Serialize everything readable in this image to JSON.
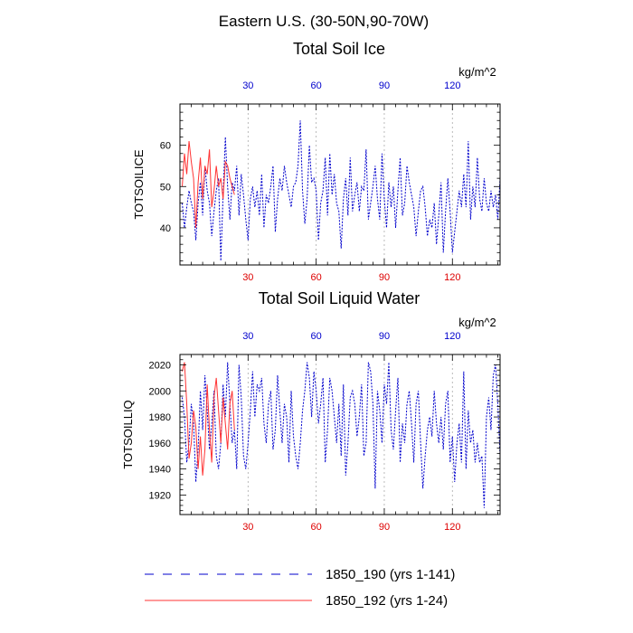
{
  "figure": {
    "region_title": "Eastern U.S. (30-50N,90-70W)"
  },
  "colors": {
    "series_a": "#0000cc",
    "series_b": "#ff3333",
    "bottom_ticks": "#dd0000",
    "top_ticks": "#0000cc",
    "grid": "#aaaaaa"
  },
  "legend": [
    {
      "label": "1850_190 (yrs 1-141)",
      "style": "dashed",
      "color": "#0000cc"
    },
    {
      "label": "1850_192 (yrs 1-24)",
      "style": "solid",
      "color": "#ff3333"
    }
  ],
  "chart_data": [
    {
      "type": "line",
      "title": "Total Soil Ice",
      "units": "kg/m^2",
      "ylabel": "TOTSOILICE",
      "xlim": [
        0,
        141
      ],
      "ylim": [
        31,
        70
      ],
      "yticks": [
        40,
        50,
        60
      ],
      "xticks": [
        30,
        60,
        90,
        120
      ],
      "series": [
        {
          "name": "1850_190 (yrs 1-141)",
          "style": "dashed",
          "color": "#0000cc",
          "values": [
            46,
            40,
            45,
            49,
            46,
            44,
            37,
            46,
            51,
            43,
            55,
            49,
            46,
            38,
            44,
            49,
            52,
            32,
            48,
            62,
            50,
            42,
            51,
            49,
            55,
            43,
            53,
            48,
            42,
            37,
            47,
            50,
            45,
            49,
            43,
            53,
            40,
            48,
            46,
            50,
            55,
            39,
            47,
            52,
            49,
            55,
            51,
            48,
            45,
            50,
            51,
            55,
            66,
            49,
            41,
            47,
            60,
            51,
            52,
            49,
            37,
            46,
            49,
            57,
            43,
            58,
            48,
            53,
            46,
            44,
            35,
            47,
            52,
            43,
            57,
            44,
            48,
            51,
            44,
            50,
            49,
            59,
            42,
            46,
            50,
            55,
            47,
            42,
            58,
            47,
            40,
            51,
            45,
            50,
            40,
            49,
            57,
            43,
            46,
            55,
            51,
            48,
            45,
            38,
            44,
            49,
            50,
            45,
            38,
            42,
            40,
            46,
            36,
            43,
            51,
            34,
            44,
            52,
            44,
            34,
            39,
            44,
            49,
            45,
            53,
            45,
            61,
            42,
            50,
            45,
            57,
            47,
            44,
            52,
            46,
            44,
            49,
            45,
            48,
            42,
            52
          ]
        },
        {
          "name": "1850_192 (yrs 1-24)",
          "style": "solid",
          "color": "#ff3333",
          "values": [
            50,
            58,
            53,
            61,
            56,
            52,
            40,
            51,
            57,
            47,
            55,
            53,
            59,
            45,
            49,
            55,
            50,
            52,
            47,
            56,
            55,
            52,
            50,
            48
          ]
        }
      ]
    },
    {
      "type": "line",
      "title": "Total Soil Liquid Water",
      "units": "kg/m^2",
      "ylabel": "TOTSOILLIQ",
      "xlim": [
        0,
        141
      ],
      "ylim": [
        1905,
        2028
      ],
      "yticks": [
        1920,
        1940,
        1960,
        1980,
        2000,
        2020
      ],
      "xticks": [
        30,
        60,
        90,
        120
      ],
      "series": [
        {
          "name": "1850_190 (yrs 1-141)",
          "style": "dashed",
          "color": "#0000cc",
          "values": [
            1995,
            1980,
            1945,
            1960,
            1990,
            1975,
            1930,
            1955,
            2000,
            1970,
            2012,
            1985,
            1955,
            1975,
            2000,
            1950,
            1940,
            1960,
            2005,
            1980,
            2022,
            1990,
            1960,
            1970,
            1940,
            2020,
            1995,
            1950,
            1940,
            1960,
            1985,
            2015,
            1980,
            2005,
            2000,
            2010,
            1975,
            1960,
            1990,
            2000,
            1955,
            1970,
            2012,
            1985,
            1960,
            1990,
            1980,
            1945,
            2000,
            1965,
            1950,
            1940,
            1960,
            1985,
            2000,
            2022,
            2010,
            1980,
            2015,
            2000,
            1975,
            1990,
            2010,
            1945,
            1970,
            2010,
            2000,
            1980,
            1960,
            1990,
            1950,
            2005,
            1935,
            1960,
            1995,
            2000,
            1990,
            1965,
            1980,
            2005,
            1950,
            1960,
            2022,
            2015,
            1990,
            1925,
            2000,
            1985,
            1960,
            2005,
            1990,
            2022,
            1970,
            1955,
            1985,
            2010,
            1945,
            1975,
            1960,
            1990,
            2000,
            1975,
            1945,
            1990,
            2000,
            1960,
            1925,
            1950,
            1970,
            1980,
            1965,
            2000,
            1975,
            1960,
            1980,
            1955,
            1990,
            2000,
            1945,
            1965,
            1930,
            1960,
            1975,
            1945,
            2015,
            1940,
            1985,
            1960,
            1970,
            1945,
            1960,
            1945,
            1950,
            1910,
            1980,
            1995,
            1970,
            2012,
            2020,
            1990,
            1950
          ]
        },
        {
          "name": "1850_192 (yrs 1-24)",
          "style": "solid",
          "color": "#ff3333",
          "values": [
            2015,
            2022,
            1990,
            1948,
            1960,
            1985,
            1972,
            1940,
            1965,
            1935,
            1955,
            2005,
            1970,
            1945,
            1995,
            2010,
            1985,
            1960,
            1995,
            1975,
            1955,
            1990,
            2000,
            1970
          ]
        }
      ]
    }
  ]
}
